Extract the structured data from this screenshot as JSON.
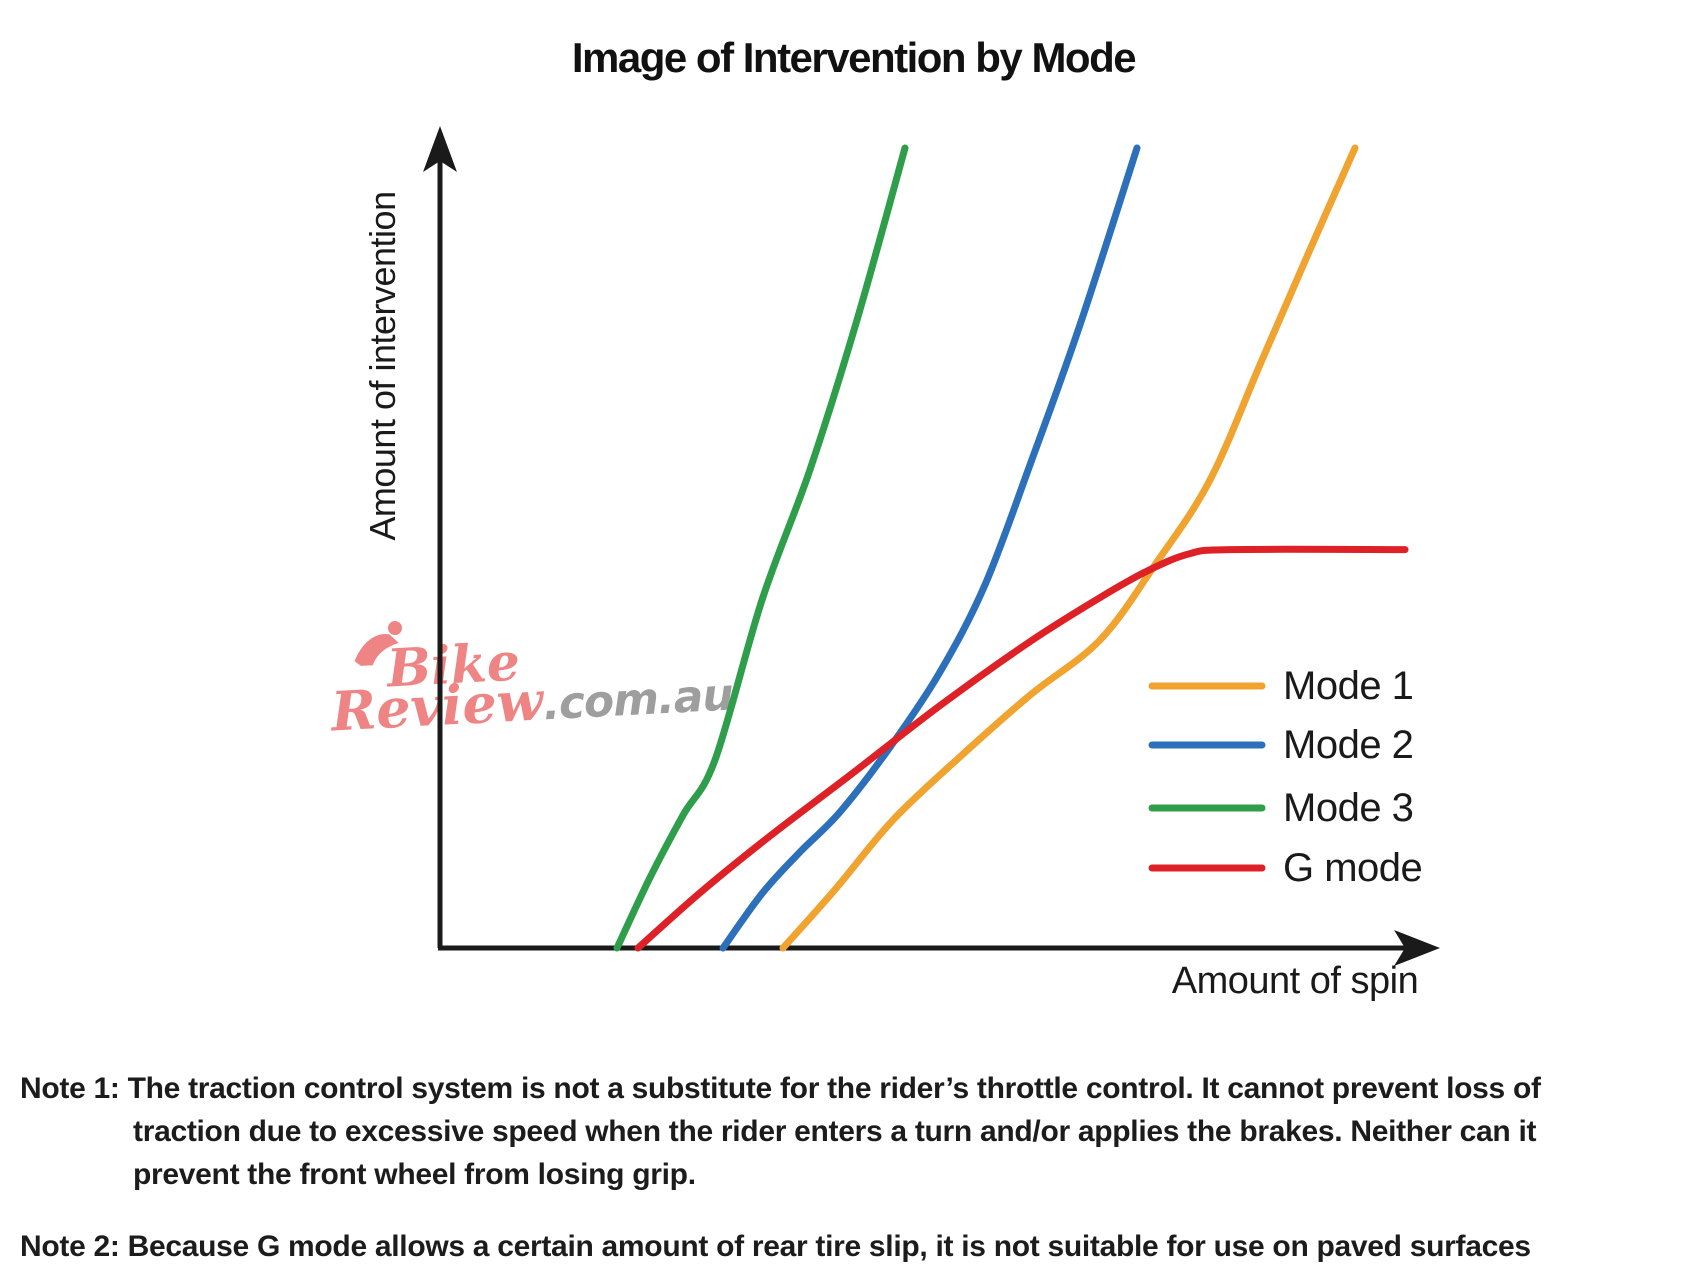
{
  "chart_data": {
    "type": "line",
    "title": "Image of Intervention by Mode",
    "xlabel": "Amount of spin",
    "ylabel": "Amount of intervention",
    "axes_quantitative": false,
    "x_range_norm": [
      0,
      100
    ],
    "y_range_norm": [
      0,
      100
    ],
    "grid": false,
    "legend_position": "right-middle",
    "series": [
      {
        "name": "Mode 1",
        "color": "#F0A32E",
        "points": [
          [
            34.3,
            0
          ],
          [
            39.5,
            7.3
          ],
          [
            45.3,
            16
          ],
          [
            52,
            23.9
          ],
          [
            59,
            31.6
          ],
          [
            66,
            38.5
          ],
          [
            71.5,
            47.9
          ],
          [
            77,
            58.5
          ],
          [
            82.2,
            73.5
          ],
          [
            87,
            87.3
          ],
          [
            91.5,
            100
          ]
        ]
      },
      {
        "name": "Mode 2",
        "color": "#2C6FBB",
        "points": [
          [
            28.3,
            0
          ],
          [
            32.2,
            6.8
          ],
          [
            36,
            12
          ],
          [
            40,
            17
          ],
          [
            45,
            25.1
          ],
          [
            50,
            34.5
          ],
          [
            54.5,
            45.4
          ],
          [
            59,
            60.4
          ],
          [
            64,
            77.9
          ],
          [
            69.7,
            100
          ]
        ]
      },
      {
        "name": "Mode 3",
        "color": "#2E9E4B",
        "points": [
          [
            17.7,
            0
          ],
          [
            21,
            8.8
          ],
          [
            24.3,
            16.6
          ],
          [
            27.5,
            23.5
          ],
          [
            32.2,
            43.5
          ],
          [
            37,
            59.8
          ],
          [
            41.7,
            78.5
          ],
          [
            46.5,
            100
          ]
        ]
      },
      {
        "name": "G mode",
        "color": "#DE2126",
        "points": [
          [
            19.8,
            0
          ],
          [
            26,
            6.9
          ],
          [
            33,
            14
          ],
          [
            41,
            21.6
          ],
          [
            50,
            30.3
          ],
          [
            59,
            38.3
          ],
          [
            66,
            43.8
          ],
          [
            71,
            47.3
          ],
          [
            75,
            49.3
          ],
          [
            79,
            49.8
          ],
          [
            96.5,
            49.8
          ]
        ]
      }
    ]
  },
  "watermark": {
    "line1": "Bike",
    "line2": "Review",
    "suffix": ".com.au",
    "color_pink": "#EE8484",
    "color_gray": "#9E9E9E"
  },
  "notes": {
    "note1_line1": "Note 1: The traction control system is not a substitute for the rider’s throttle control. It cannot prevent loss of",
    "note1_line2": "traction due to excessive speed when the rider enters a turn and/or applies the brakes. Neither can it",
    "note1_line3": "prevent the front wheel from losing grip.",
    "note2_line1": "Note 2: Because G mode allows a certain amount of rear tire slip, it is not suitable for use on paved surfaces"
  },
  "colors": {
    "axis": "#1A1A1A",
    "text": "#1C1C1C"
  }
}
